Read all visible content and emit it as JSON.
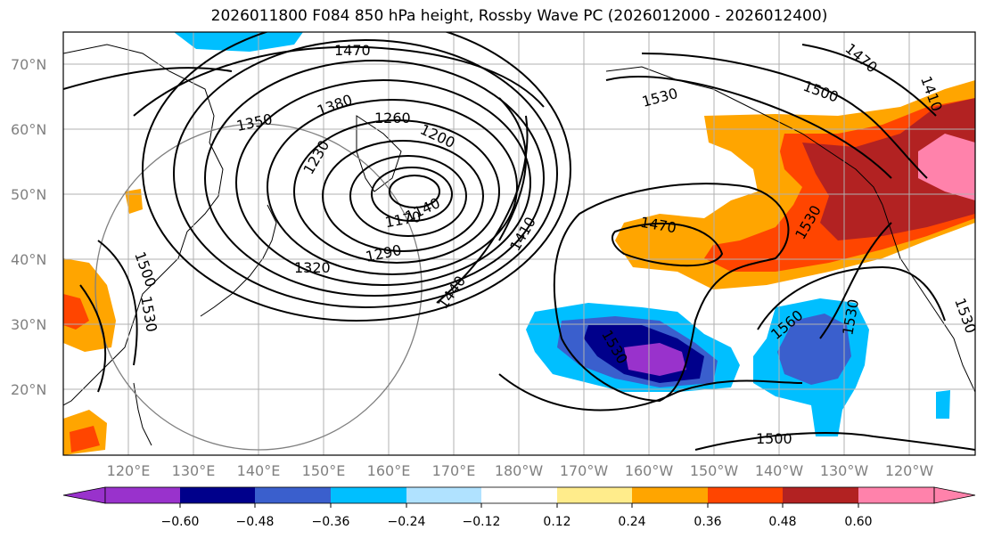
{
  "title": "2026011800 F084 850 hPa height, Rossby Wave PC (2026012000 - 2026012400)",
  "latitude_labels": [
    "70°N",
    "60°N",
    "50°N",
    "40°N",
    "30°N",
    "20°N"
  ],
  "longitude_labels": [
    "120°E",
    "130°E",
    "140°E",
    "150°E",
    "160°E",
    "170°E",
    "180°W",
    "170°W",
    "160°W",
    "150°W",
    "140°W",
    "130°W",
    "120°W"
  ],
  "contour_labels": [
    "1470",
    "1530",
    "1500",
    "1470",
    "1410",
    "1380",
    "1350",
    "1260",
    "1200",
    "1230",
    "1170",
    "1140",
    "1290",
    "1320",
    "1410",
    "1440",
    "1470",
    "1530",
    "1560",
    "1530",
    "1530",
    "1530",
    "1500",
    "1500",
    "1470",
    "1530"
  ],
  "colorbar": {
    "ticks": [
      "−0.60",
      "−0.48",
      "−0.36",
      "−0.24",
      "−0.12",
      "0.12",
      "0.24",
      "0.36",
      "0.48",
      "0.60"
    ],
    "colors": [
      "#9932cc",
      "#00008b",
      "#3a5fcd",
      "#00bfff",
      "#b0e2ff",
      "#ffffff",
      "#ffec8b",
      "#ffa500",
      "#ff4500",
      "#b22222",
      "#ff82ab"
    ]
  }
}
